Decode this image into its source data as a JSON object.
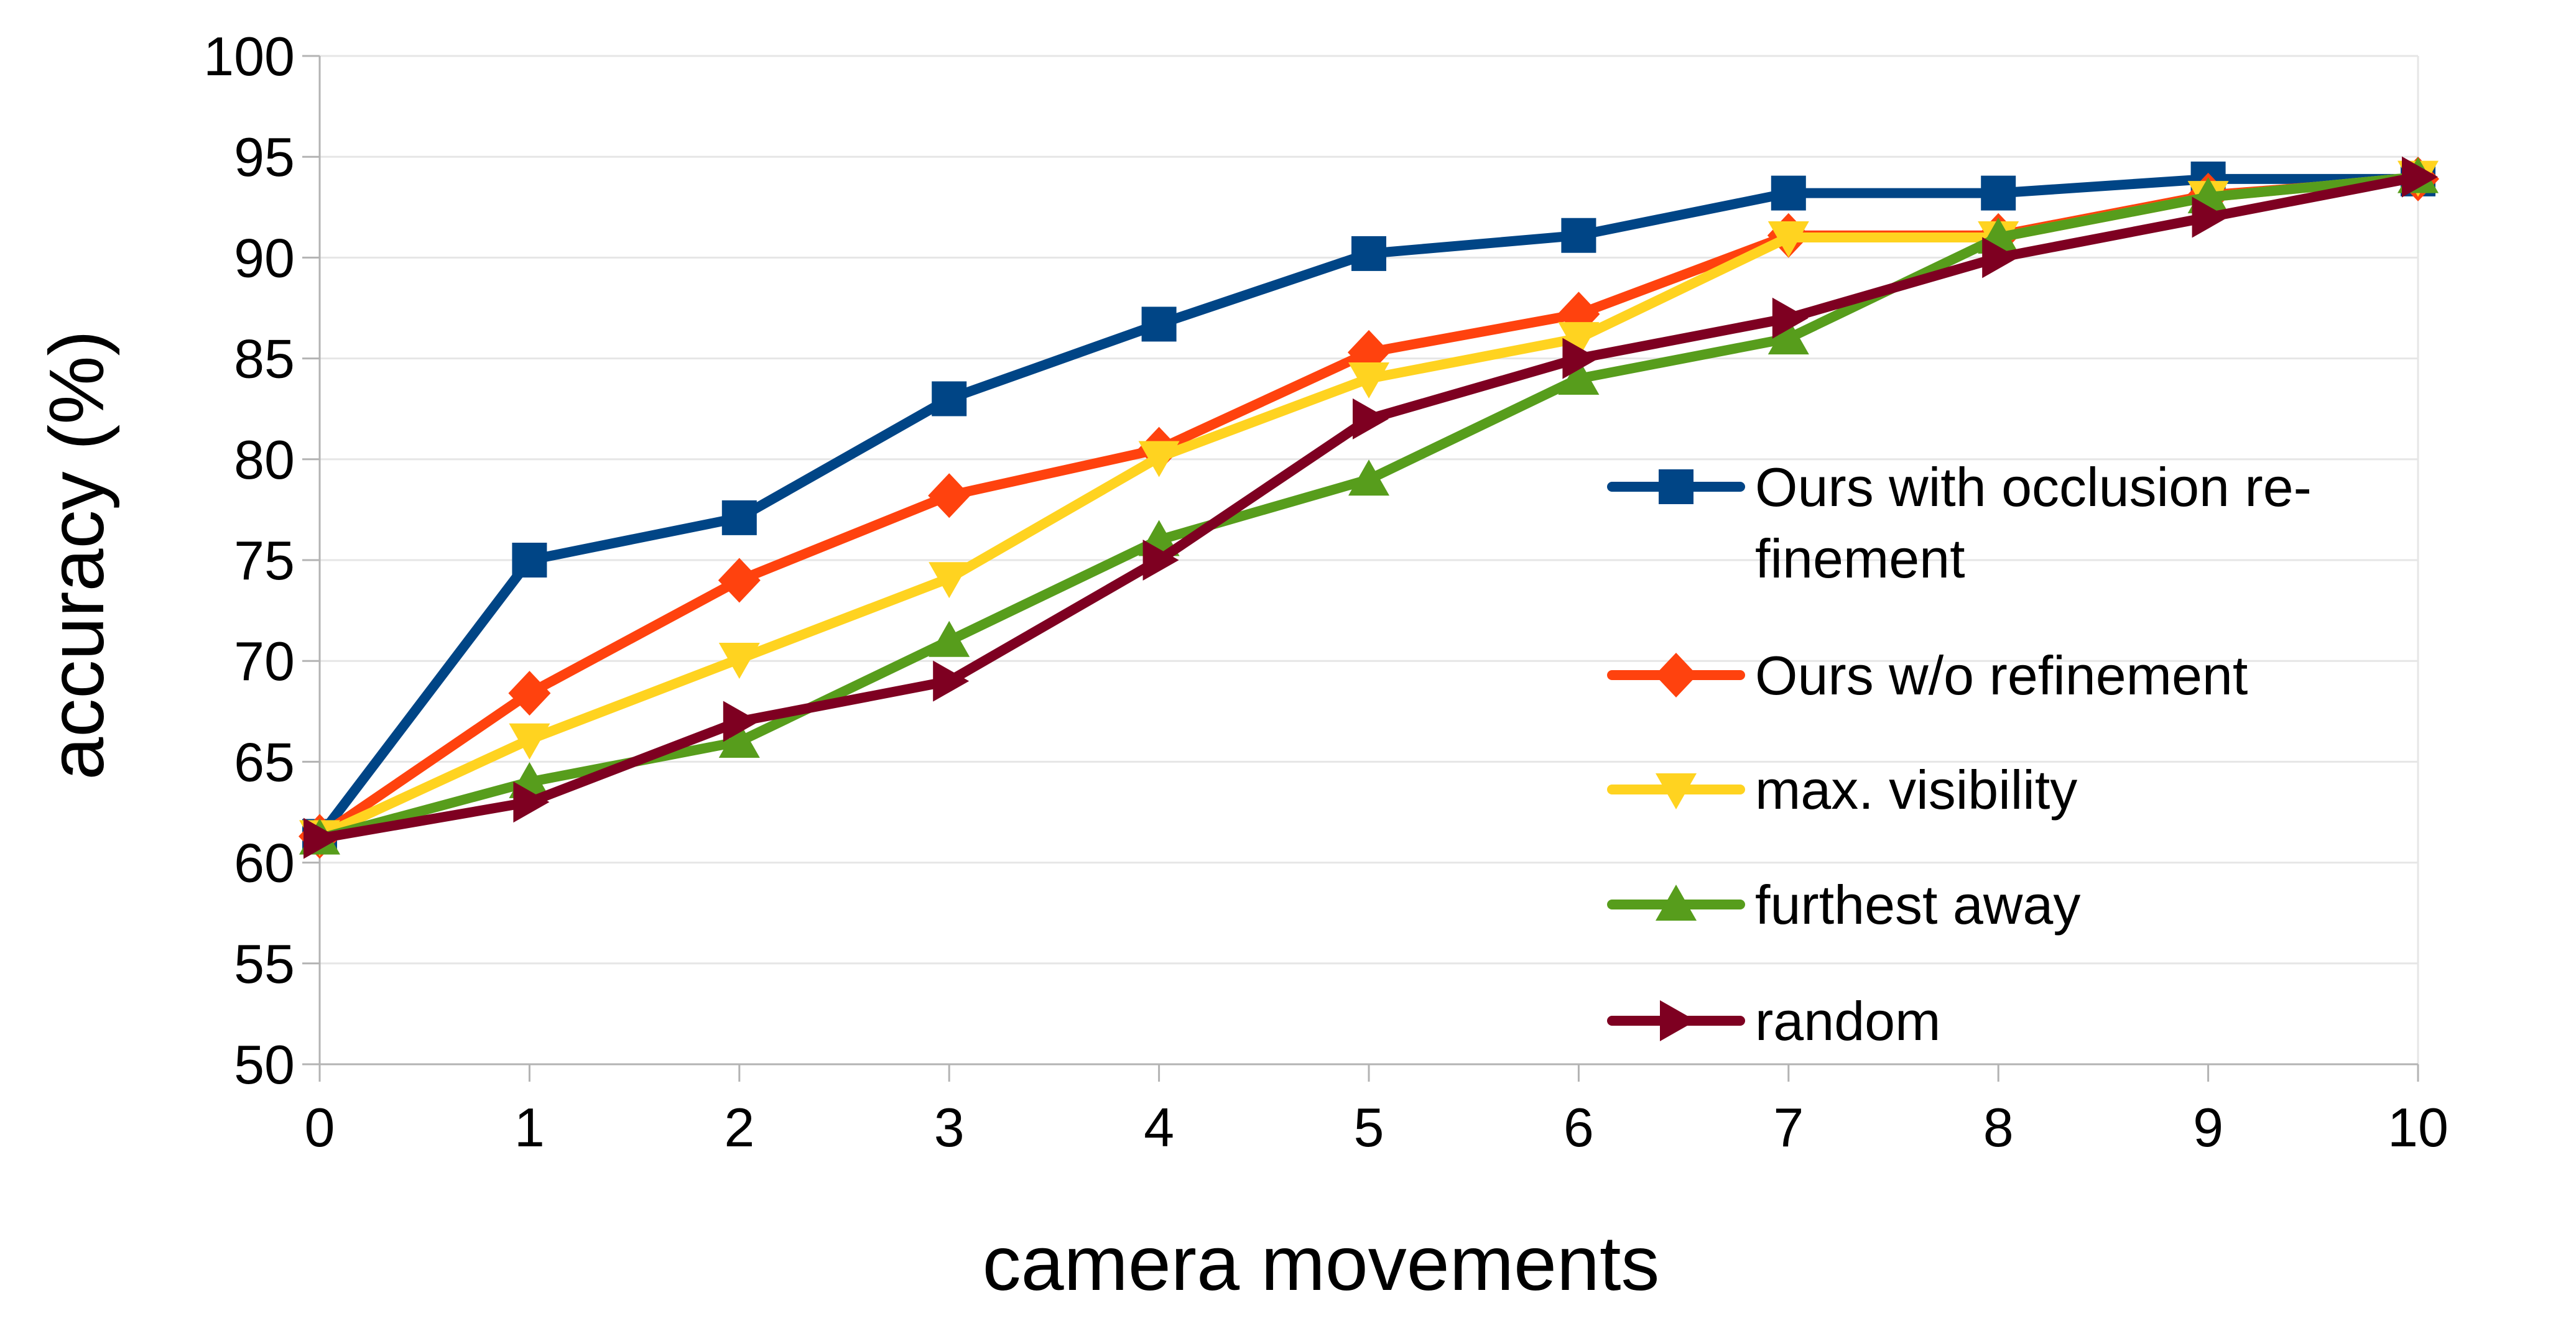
{
  "chart_data": {
    "type": "line",
    "title": "",
    "xlabel": "camera movements",
    "ylabel": "accuracy (%)",
    "xlim": [
      0,
      10
    ],
    "ylim": [
      50,
      100
    ],
    "x_ticks": [
      0,
      1,
      2,
      3,
      4,
      5,
      6,
      7,
      8,
      9,
      10
    ],
    "y_ticks": [
      50,
      55,
      60,
      65,
      70,
      75,
      80,
      85,
      90,
      95,
      100
    ],
    "grid": "horizontal",
    "legend_position": "right",
    "x": [
      0,
      1,
      2,
      3,
      4,
      5,
      6,
      7,
      8,
      9,
      10
    ],
    "series": [
      {
        "name": "Ours with occlusion re-",
        "name_cont": "finement",
        "color": "#004586",
        "marker": "square",
        "values": [
          61.3,
          75,
          77.1,
          83,
          86.7,
          90.2,
          91.1,
          93.2,
          93.2,
          93.9,
          93.9
        ]
      },
      {
        "name": "Ours w/o refinement",
        "color": "#ff420e",
        "marker": "diamond",
        "values": [
          61.3,
          68.4,
          74,
          78.2,
          80.5,
          85.3,
          87.2,
          91.1,
          91.1,
          93.1,
          93.9
        ]
      },
      {
        "name": "max. visibility",
        "color": "#ffd320",
        "marker": "triangle-down",
        "values": [
          61.3,
          66.1,
          70.1,
          74.1,
          80.1,
          84,
          86,
          91,
          91,
          93,
          94
        ]
      },
      {
        "name": "furthest away",
        "color": "#579d1c",
        "marker": "triangle-up",
        "values": [
          61.2,
          64,
          66,
          71,
          76,
          79,
          84,
          86,
          91,
          93,
          94
        ]
      },
      {
        "name": "random",
        "color": "#7e0021",
        "marker": "triangle-right",
        "values": [
          61.2,
          63,
          67,
          69,
          75,
          82,
          85,
          87,
          90,
          92,
          94
        ]
      }
    ]
  }
}
